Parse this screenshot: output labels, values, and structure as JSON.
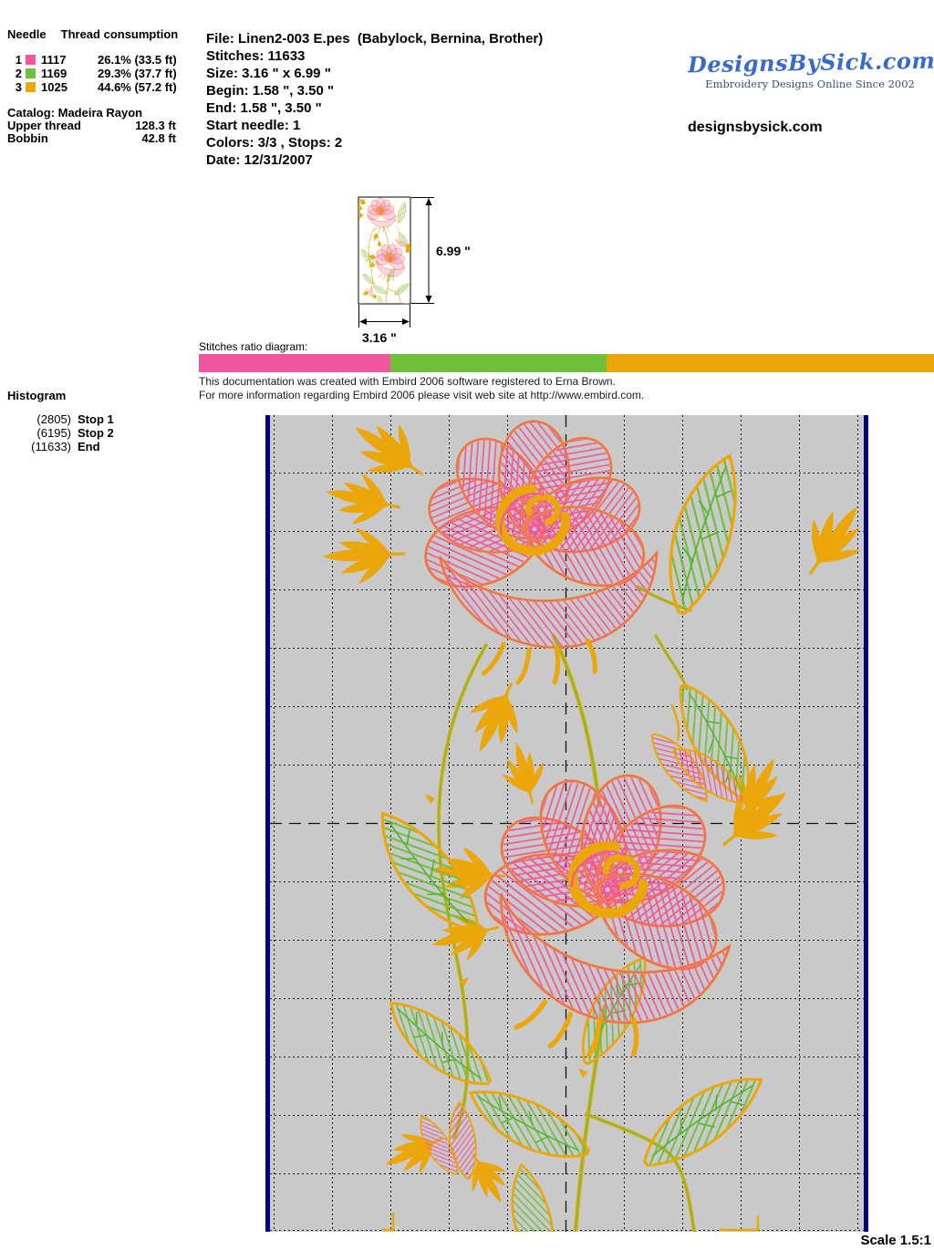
{
  "header": {
    "needle_table": {
      "col_needle": "Needle",
      "col_consumption": "Thread consumption",
      "rows": [
        {
          "needle": "1",
          "color": "#F0579D",
          "thread": "1117",
          "consumption": "26.1% (33.5 ft)"
        },
        {
          "needle": "2",
          "color": "#6FC13C",
          "thread": "1169",
          "consumption": "29.3% (37.7 ft)"
        },
        {
          "needle": "3",
          "color": "#EBA60A",
          "thread": "1025",
          "consumption": "44.6% (57.2 ft)"
        }
      ],
      "catalog": "Catalog: Madeira Rayon",
      "upper_thread_label": "Upper thread",
      "upper_thread_value": "128.3 ft",
      "bobbin_label": "Bobbin",
      "bobbin_value": "42.8 ft"
    },
    "file_info": {
      "lines": [
        "File: Linen2-003 E.pes  (Babylock, Bernina, Brother)",
        "Stitches: 11633",
        "Size: 3.16 \" x 6.99 \"",
        "Begin: 1.58 \", 3.50 \"",
        "End: 1.58 \", 3.50 \"",
        "Start needle: 1",
        "Colors: 3/3 , Stops: 2",
        "Date: 12/31/2007"
      ]
    },
    "brand": {
      "logo_text": "DesignsBySick.com",
      "logo_tagline": "Embroidery Designs Online Since 2002",
      "website": "designsbysick.com",
      "logo_color": "#3A6BC8"
    }
  },
  "thumbnail": {
    "height_label": "6.99 \"",
    "width_label": "3.16 \""
  },
  "ratio_diagram": {
    "label": "Stitches ratio diagram:",
    "segments": [
      {
        "name": "needle-1",
        "color": "#F0579D",
        "percent": 26.1
      },
      {
        "name": "needle-2",
        "color": "#6FC13C",
        "percent": 29.3
      },
      {
        "name": "needle-3",
        "color": "#EBA60A",
        "percent": 44.6
      }
    ]
  },
  "credits": {
    "line1": "This documentation was created with Embird 2006 software registered to Erna Brown.",
    "line2": "For more information regarding Embird 2006 please visit web site at http://www.embird.com."
  },
  "histogram": {
    "title": "Histogram",
    "entries": [
      {
        "count": "(2805)",
        "label": "Stop 1"
      },
      {
        "count": "(6195)",
        "label": "Stop 2"
      },
      {
        "count": "(11633)",
        "label": "End"
      }
    ]
  },
  "footer": {
    "scale_label": "Scale 1.5:1"
  },
  "palette": {
    "stitch_pink": "#F0579D",
    "stitch_green": "#6FC13C",
    "stitch_orange": "#EBA60A",
    "hoop_border_navy": "#000080",
    "canvas_gray": "#C9C9C9"
  }
}
